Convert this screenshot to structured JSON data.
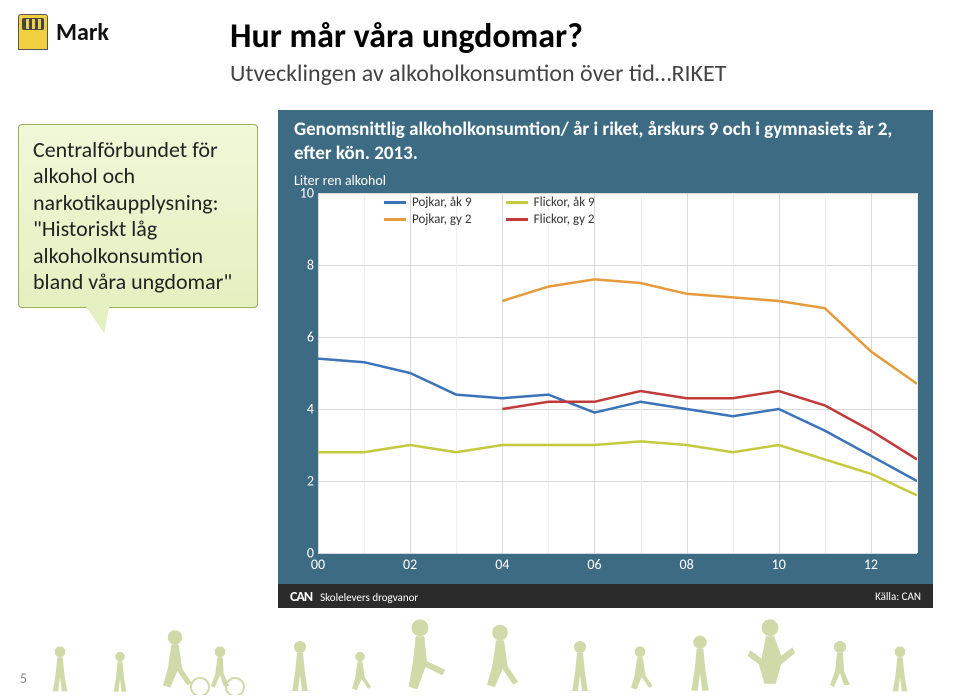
{
  "brand": {
    "name": "Mark"
  },
  "header": {
    "title": "Hur mår våra ungdomar?",
    "subtitle": "Utvecklingen av alkoholkonsumtion över tid…RIKET"
  },
  "callout": {
    "text": "Centralförbundet för alkohol och narkotikaupplysning:\n\"Historiskt låg alkoholkonsumtion bland våra ungdomar\""
  },
  "chart": {
    "type": "line",
    "title": "Genomsnittlig alkoholkonsumtion/ år i riket, årskurs 9 och i gymnasiets år 2, efter kön. 2013.",
    "ylabel": "Liter ren alkohol",
    "background_color": "#3d6b83",
    "plot_bg": "#ffffff",
    "grid_color": "#d9d9d9",
    "ylim": [
      0,
      10
    ],
    "ytick_step": 2,
    "x_categories": [
      "00",
      "02",
      "04",
      "06",
      "08",
      "10",
      "12"
    ],
    "x_minor_per_major": 2,
    "series": [
      {
        "label": "Pojkar, åk 9",
        "color": "#3b73b9",
        "values": [
          5.4,
          5.3,
          5.0,
          4.4,
          4.3,
          4.4,
          3.9,
          4.2,
          4.0,
          3.8,
          4.0,
          3.4,
          2.7,
          2.0
        ]
      },
      {
        "label": "Flickor, åk 9",
        "color": "#c4c93d",
        "values": [
          2.8,
          2.8,
          3.0,
          2.8,
          3.0,
          3.0,
          3.0,
          3.1,
          3.0,
          2.8,
          3.0,
          2.6,
          2.2,
          1.6
        ]
      },
      {
        "label": "Pojkar, gy 2",
        "color": "#e79a3c",
        "values": [
          null,
          null,
          null,
          null,
          7.0,
          7.4,
          7.6,
          7.5,
          7.2,
          7.1,
          7.0,
          6.8,
          5.6,
          4.7
        ]
      },
      {
        "label": "Flickor, gy 2",
        "color": "#c03a3a",
        "values": [
          null,
          null,
          null,
          null,
          4.0,
          4.2,
          4.2,
          4.5,
          4.3,
          4.3,
          4.5,
          4.1,
          3.4,
          2.6
        ]
      }
    ],
    "legend_position": "top-left-inside",
    "line_width": 2.5,
    "footer_left_brand": "CAN",
    "footer_left_text": "Skolelevers drogvanor",
    "footer_right": "Källa: CAN"
  },
  "page_number": "5",
  "silhouette_color": "#c7d49a"
}
